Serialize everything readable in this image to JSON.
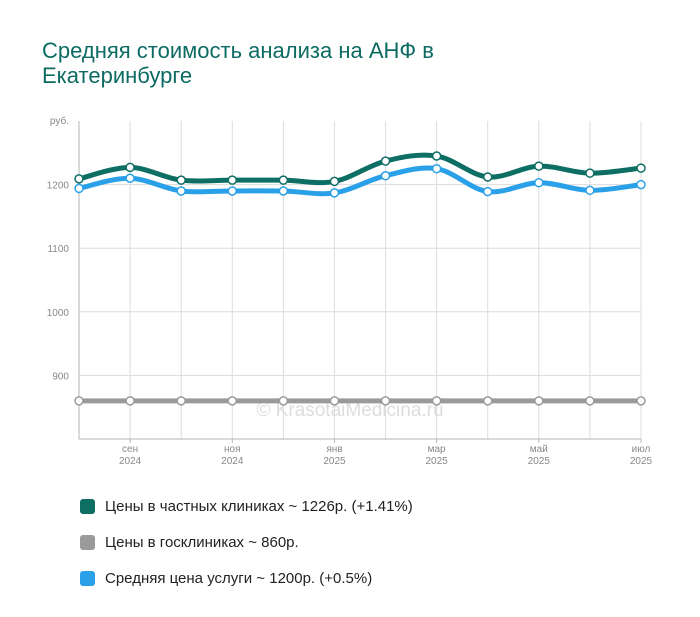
{
  "title": "Средняя стоимость анализа на АНФ в Екатеринбурге",
  "watermark": "© KrasotaiMedicina.ru",
  "colors": {
    "private": "#0d6e63",
    "public": "#9a9a9a",
    "avg": "#2aa0e8"
  },
  "legend": [
    {
      "label": "Цены в частных клиниках ~ 1226р. (+1.41%)",
      "color": "#0d6e63"
    },
    {
      "label": "Цены в госклиниках ~ 860р.",
      "color": "#9a9a9a"
    },
    {
      "label": "Средняя цена услуги ~ 1200р. (+0.5%)",
      "color": "#2aa0e8"
    }
  ],
  "chart_data": {
    "type": "line",
    "ylabel": "руб.",
    "ylim": [
      800,
      1300
    ],
    "yticks": [
      900,
      1000,
      1100,
      1200
    ],
    "grid": true,
    "x_ticks": [
      {
        "line1": "сен",
        "line2": "2024"
      },
      {
        "line1": "ноя",
        "line2": "2024"
      },
      {
        "line1": "янв",
        "line2": "2025"
      },
      {
        "line1": "мар",
        "line2": "2025"
      },
      {
        "line1": "май",
        "line2": "2025"
      },
      {
        "line1": "июл",
        "line2": "2025"
      }
    ],
    "series": [
      {
        "name": "Цены в частных клиниках",
        "color": "#0d6e63",
        "values": [
          1209,
          1227,
          1207,
          1207,
          1207,
          1205,
          1237,
          1245,
          1212,
          1229,
          1218,
          1226
        ]
      },
      {
        "name": "Цены в госклиниках",
        "color": "#9a9a9a",
        "values": [
          860,
          860,
          860,
          860,
          860,
          860,
          860,
          860,
          860,
          860,
          860,
          860
        ]
      },
      {
        "name": "Средняя цена услуги",
        "color": "#2aa0e8",
        "values": [
          1194,
          1210,
          1190,
          1190,
          1190,
          1187,
          1214,
          1225,
          1189,
          1203,
          1191,
          1200
        ]
      }
    ]
  }
}
